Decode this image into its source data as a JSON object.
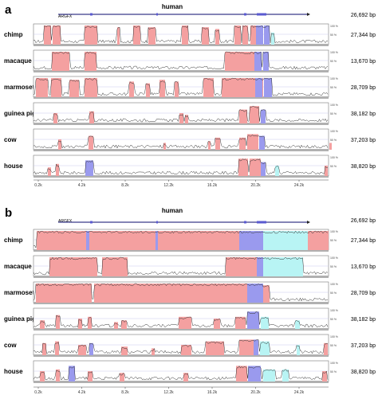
{
  "panels": [
    {
      "label": "a",
      "reference": {
        "name": "human",
        "gene_label": "ARGFX",
        "length": "26,692 bp"
      },
      "axis_ticks": [
        "0.2k",
        "4.2k",
        "8.2k",
        "12.2k",
        "16.2k",
        "20.2k",
        "24.2k"
      ],
      "tracks": [
        {
          "species": "chimp",
          "length": "27,344 bp"
        },
        {
          "species": "macaque",
          "length": "13,670 bp"
        },
        {
          "species": "marmoset",
          "length": "28,709 bp"
        },
        {
          "species": "guinea pig",
          "length": "38,182 bp"
        },
        {
          "species": "cow",
          "length": "37,203 bp"
        },
        {
          "species": "house",
          "length": "38,820 bp"
        }
      ]
    },
    {
      "label": "b",
      "reference": {
        "name": "human",
        "gene_label": "ARGFX",
        "length": "26,692 bp"
      },
      "axis_ticks": [
        "0.2k",
        "4.2k",
        "8.2k",
        "12.2k",
        "16.2k",
        "20.2k",
        "24.2k"
      ],
      "tracks": [
        {
          "species": "chimp",
          "length": "27,344 bp"
        },
        {
          "species": "macaque",
          "length": "13,670 bp"
        },
        {
          "species": "marmoset",
          "length": "28,709 bp"
        },
        {
          "species": "guinea pig",
          "length": "38,182 bp"
        },
        {
          "species": "cow",
          "length": "37,203 bp"
        },
        {
          "species": "house",
          "length": "38,820 bp"
        }
      ]
    }
  ],
  "scale_labels": {
    "top": "100 %",
    "bottom": "50 %"
  },
  "colors": {
    "conserved_noncoding": "#f4a0a0",
    "exon": "#9a9aee",
    "utr": "#b8f4f4",
    "baseline": "#b0b0b0",
    "trace": "#333333"
  }
}
